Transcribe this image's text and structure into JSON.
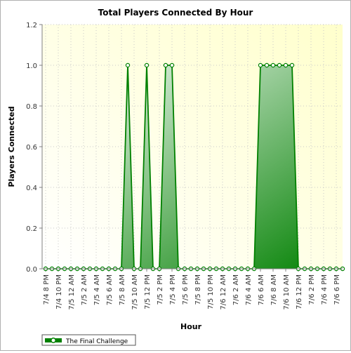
{
  "chart_data": {
    "type": "area",
    "title": "Total Players Connected By Hour",
    "xlabel": "Hour",
    "ylabel": "Players Connected",
    "ylim": [
      0,
      1.2
    ],
    "yticks": [
      "0.0",
      "0.2",
      "0.4",
      "0.6",
      "0.8",
      "1.0",
      "1.2"
    ],
    "x_step": "1 hour",
    "x_range": [
      "7/4 8 PM",
      "7/6 7 PM"
    ],
    "xtick_labels": [
      "7/4 8 PM",
      "7/4 10 PM",
      "7/5 12 AM",
      "7/5 2 AM",
      "7/5 4 AM",
      "7/5 6 AM",
      "7/5 8 AM",
      "7/5 10 AM",
      "7/5 12 PM",
      "7/5 2 PM",
      "7/5 4 PM",
      "7/5 6 PM",
      "7/5 8 PM",
      "7/5 10 PM",
      "7/6 12 AM",
      "7/6 2 AM",
      "7/6 4 AM",
      "7/6 6 AM",
      "7/6 8 AM",
      "7/6 10 AM",
      "7/6 12 PM",
      "7/6 2 PM",
      "7/6 4 PM",
      "7/6 6 PM"
    ],
    "series": [
      {
        "name": "The Final Challenge",
        "color": "#008000",
        "values": [
          0,
          0,
          0,
          0,
          0,
          0,
          0,
          0,
          0,
          0,
          0,
          0,
          0,
          1,
          0,
          0,
          1,
          0,
          0,
          1,
          1,
          0,
          0,
          0,
          0,
          0,
          0,
          0,
          0,
          0,
          0,
          0,
          0,
          0,
          1,
          1,
          1,
          1,
          1,
          1,
          0,
          0,
          0,
          0,
          0,
          0,
          0,
          0
        ]
      }
    ],
    "grid": true,
    "legend": "bottom-left"
  }
}
